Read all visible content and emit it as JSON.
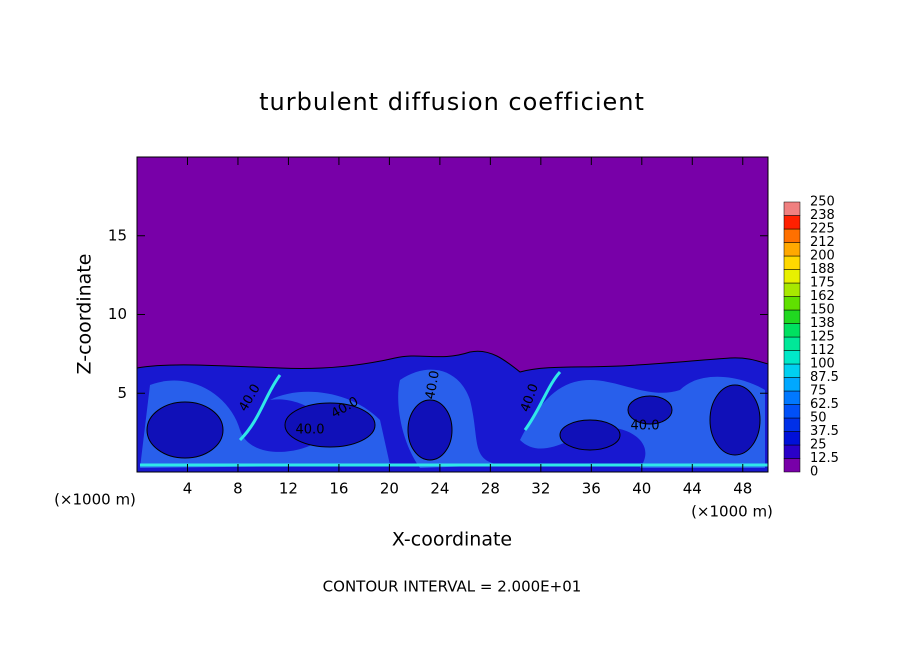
{
  "chart_data": {
    "type": "contour",
    "title": "turbulent diffusion coefficient",
    "x_label": "X-coordinate",
    "y_label": "Z-coordinate",
    "x_unit": "(×1000 m)",
    "footnote": "CONTOUR INTERVAL = 2.000E+01",
    "xlim": [
      0,
      50
    ],
    "xticks": [
      4,
      8,
      12,
      16,
      20,
      24,
      28,
      32,
      36,
      40,
      44,
      48
    ],
    "ylim": [
      0,
      20
    ],
    "yticks": [
      5,
      10,
      15
    ],
    "contour_labels": [
      "40.0",
      "40.0",
      "40.0",
      "40.0",
      "40.0",
      "40.0"
    ],
    "colorbar": {
      "levels": [
        0,
        12.5,
        25,
        37.5,
        50,
        62.5,
        75,
        87.5,
        100,
        112,
        125,
        138,
        150,
        162,
        175,
        188,
        200,
        212,
        225,
        238,
        250
      ],
      "colors": [
        "#7800a8",
        "#2a00c8",
        "#0010d8",
        "#0030e8",
        "#0050f8",
        "#0078ff",
        "#00a8ff",
        "#00d0f0",
        "#00e8c8",
        "#00e898",
        "#00e060",
        "#20d820",
        "#60e000",
        "#a8e800",
        "#e8f000",
        "#ffd800",
        "#ffa800",
        "#ff7000",
        "#ff2000",
        "#f08080"
      ]
    }
  }
}
